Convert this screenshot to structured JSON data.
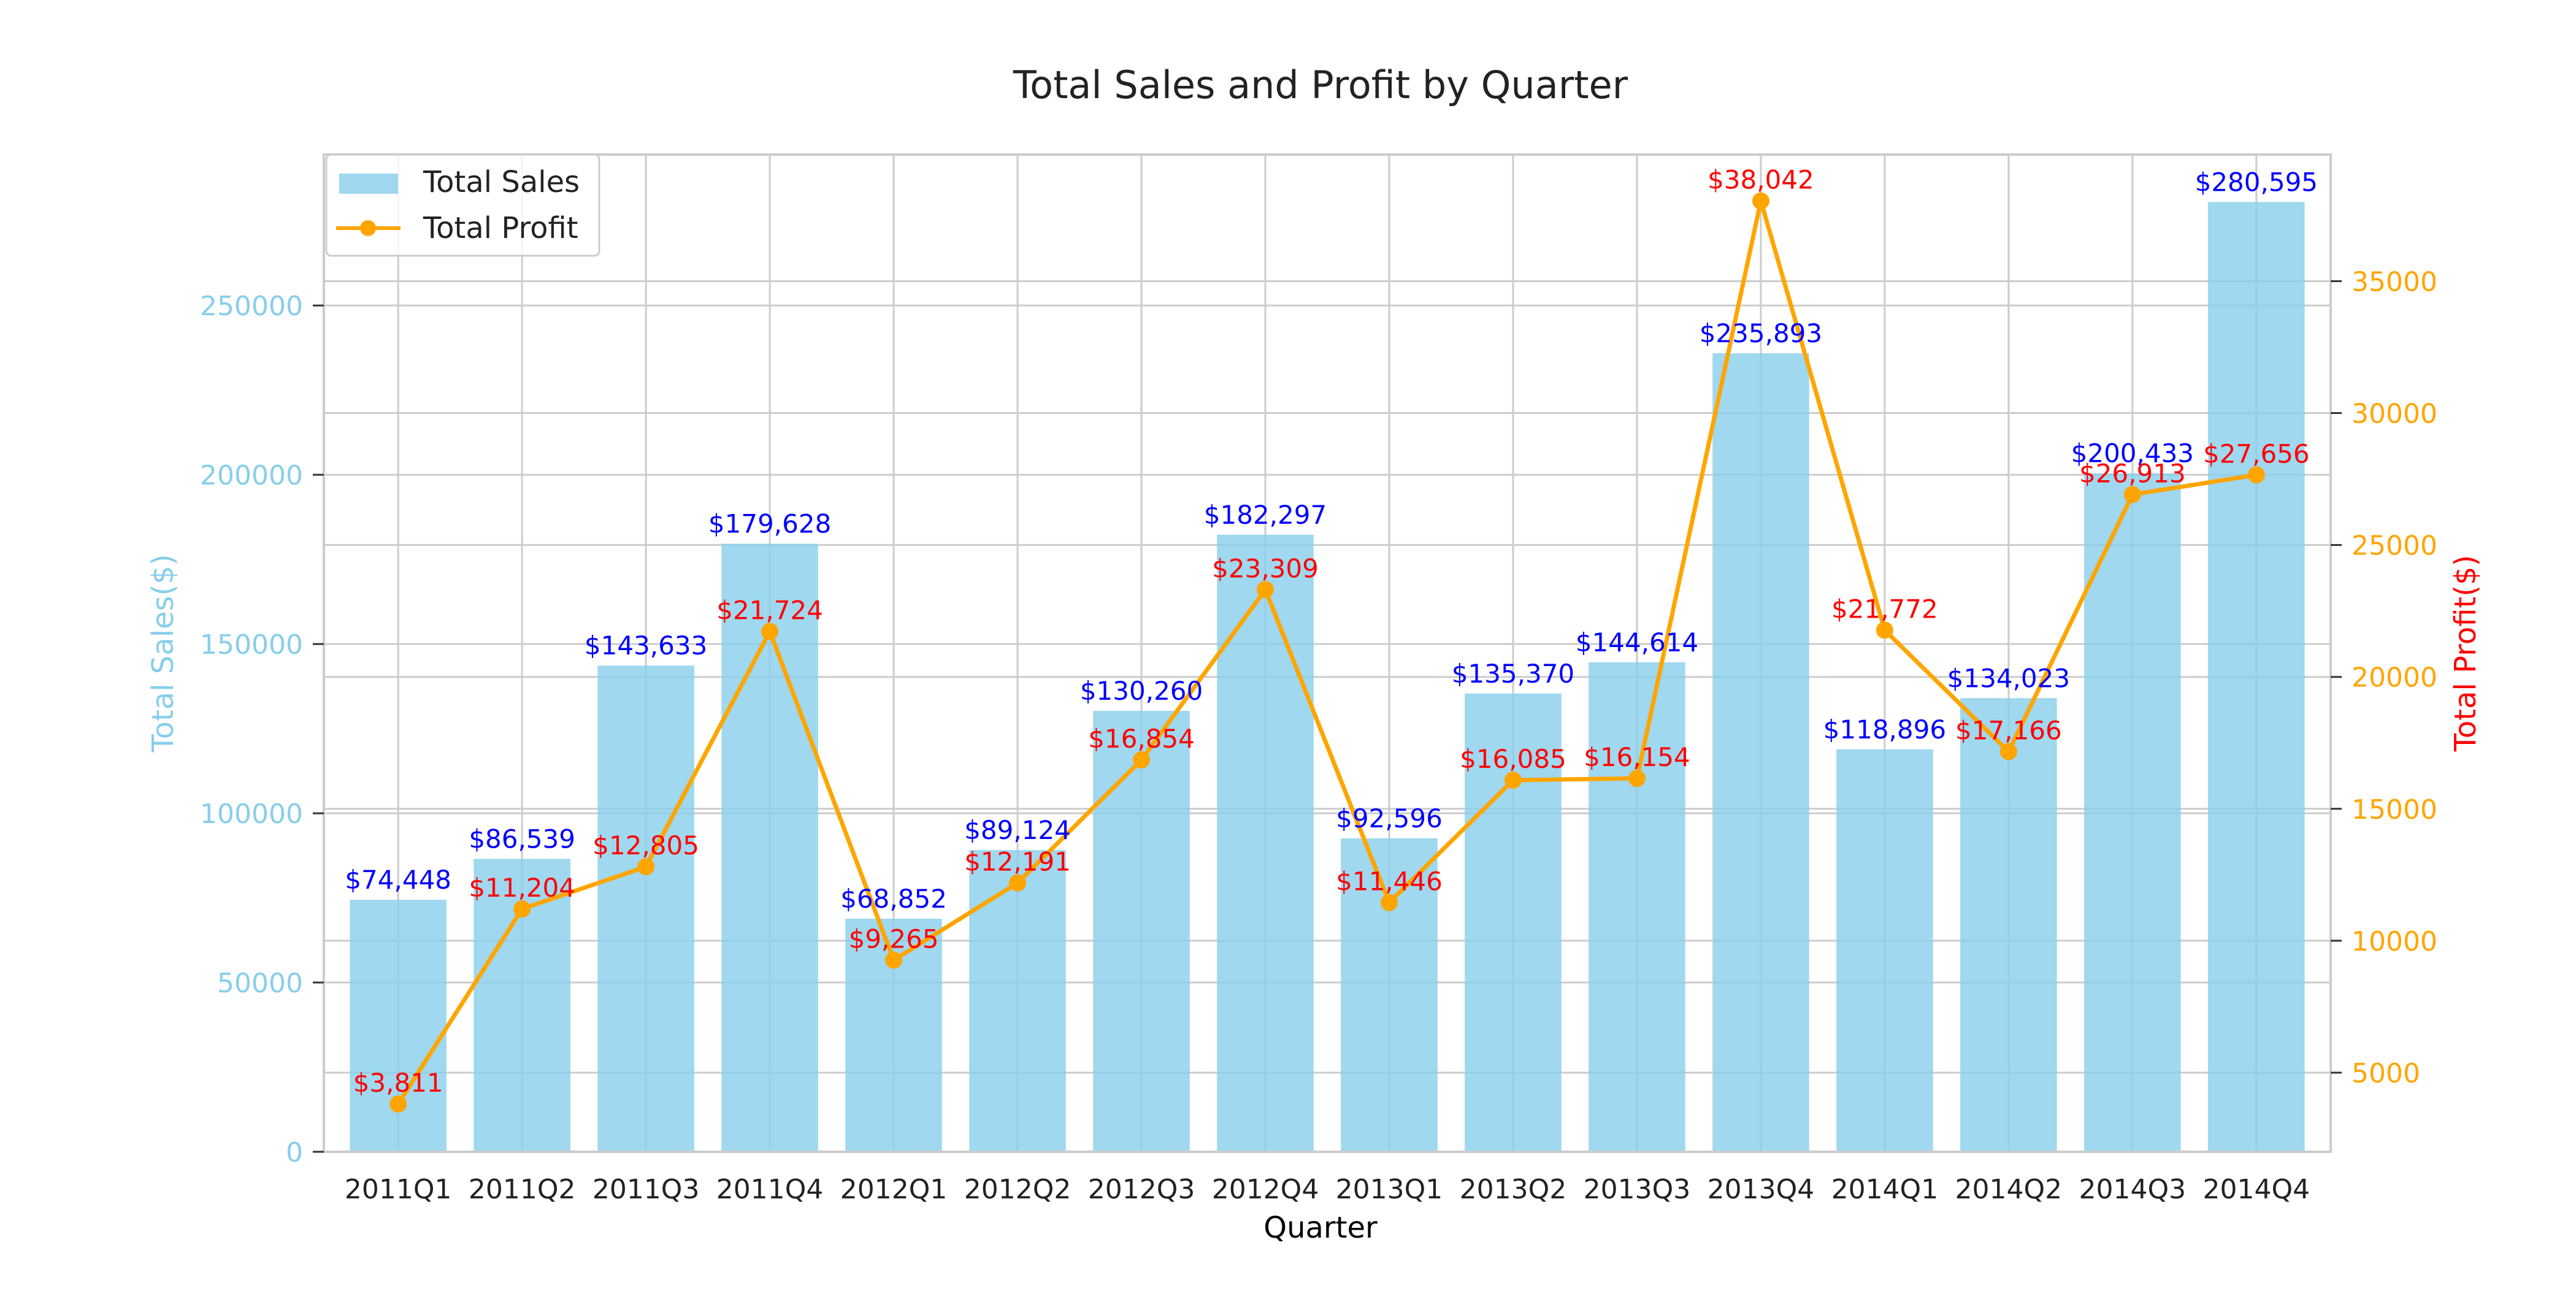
{
  "chart_data": {
    "type": "bar",
    "title": "Total Sales and Profit by Quarter",
    "xlabel": "Quarter",
    "ylabel_left": "Total Sales($)",
    "ylabel_right": "Total Profit($)",
    "categories": [
      "2011Q1",
      "2011Q2",
      "2011Q3",
      "2011Q4",
      "2012Q1",
      "2012Q2",
      "2012Q3",
      "2012Q4",
      "2013Q1",
      "2013Q2",
      "2013Q3",
      "2013Q4",
      "2014Q1",
      "2014Q2",
      "2014Q3",
      "2014Q4"
    ],
    "series": [
      {
        "name": "Total Sales",
        "type": "bar",
        "axis": "left",
        "color": "#87CEEB",
        "label_color": "#0000FF",
        "values": [
          74448,
          86539,
          143633,
          179628,
          68852,
          89124,
          130260,
          182297,
          92596,
          135370,
          144614,
          235893,
          118896,
          134023,
          200433,
          280595
        ],
        "labels": [
          "$74,448",
          "$86,539",
          "$143,633",
          "$179,628",
          "$68,852",
          "$89,124",
          "$130,260",
          "$182,297",
          "$92,596",
          "$135,370",
          "$144,614",
          "$235,893",
          "$118,896",
          "$134,023",
          "$200,433",
          "$280,595"
        ]
      },
      {
        "name": "Total Profit",
        "type": "line",
        "axis": "right",
        "color": "#FFA500",
        "label_color": "#FF0000",
        "values": [
          3811,
          11204,
          12805,
          21724,
          9265,
          12191,
          16854,
          23309,
          11446,
          16085,
          16154,
          38042,
          21772,
          17166,
          26913,
          27656
        ],
        "labels": [
          "$3,811",
          "$11,204",
          "$12,805",
          "$21,724",
          "$9,265",
          "$12,191",
          "$16,854",
          "$23,309",
          "$11,446",
          "$16,085",
          "$16,154",
          "$38,042",
          "$21,772",
          "$17,166",
          "$26,913",
          "$27,656"
        ]
      }
    ],
    "ylim_left": [
      0,
      294600
    ],
    "ylim_right": [
      2000,
      39800
    ],
    "yticks_left": [
      0,
      50000,
      100000,
      150000,
      200000,
      250000
    ],
    "yticks_left_labels": [
      "0",
      "50000",
      "100000",
      "150000",
      "200000",
      "250000"
    ],
    "yticks_right": [
      5000,
      10000,
      15000,
      20000,
      25000,
      30000,
      35000
    ],
    "yticks_right_labels": [
      "5000",
      "10000",
      "15000",
      "20000",
      "25000",
      "30000",
      "35000"
    ],
    "left_axis_color": "#87CEEB",
    "right_axis_color": "#FFA500",
    "right_label_color": "#FF0000",
    "grid": true,
    "legend": "top-left"
  }
}
